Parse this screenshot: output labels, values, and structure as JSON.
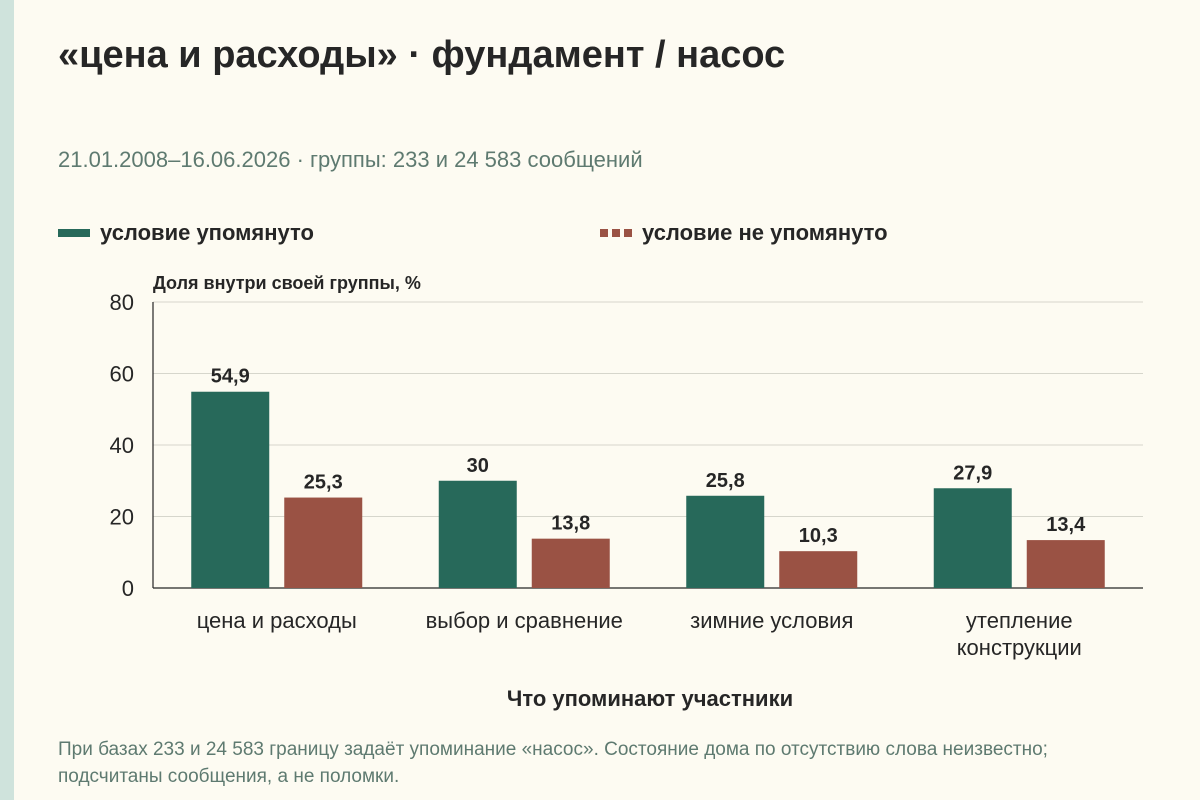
{
  "title": "«цена и расходы» · фундамент / насос",
  "subtitle": "21.01.2008–16.06.2026 · группы: 233 и 24 583 сообщений",
  "legend": [
    {
      "label": "условие упомянуто",
      "color": "#27695a",
      "style": "solid"
    },
    {
      "label": "условие не упомянуто",
      "color": "#9a5244",
      "style": "dashed"
    }
  ],
  "footnote": "При базах 233 и 24 583 границу задаёт упоминание «насос». Состояние дома по отсутствию слова неизвестно; подсчитаны сообщения, а не поломки.",
  "chart_data": {
    "type": "bar",
    "categories": [
      "цена и расходы",
      "выбор и сравнение",
      "зимние условия",
      "утепление конструкции"
    ],
    "category_lines": [
      [
        "цена и расходы"
      ],
      [
        "выбор и сравнение"
      ],
      [
        "зимние условия"
      ],
      [
        "утепление",
        "конструкции"
      ]
    ],
    "series": [
      {
        "name": "условие упомянуто",
        "values": [
          54.9,
          30,
          25.8,
          27.9
        ],
        "labels": [
          "54,9",
          "30",
          "25,8",
          "27,9"
        ],
        "color": "#27695a"
      },
      {
        "name": "условие не упомянуто",
        "values": [
          25.3,
          13.8,
          10.3,
          13.4
        ],
        "labels": [
          "25,3",
          "13,8",
          "10,3",
          "13,4"
        ],
        "color": "#9a5244"
      }
    ],
    "xlabel": "Что упоминают участники",
    "ylabel": "Доля внутри своей группы, %",
    "ylim": [
      0,
      80
    ],
    "yticks": [
      0,
      20,
      40,
      60,
      80
    ],
    "grid": true
  }
}
